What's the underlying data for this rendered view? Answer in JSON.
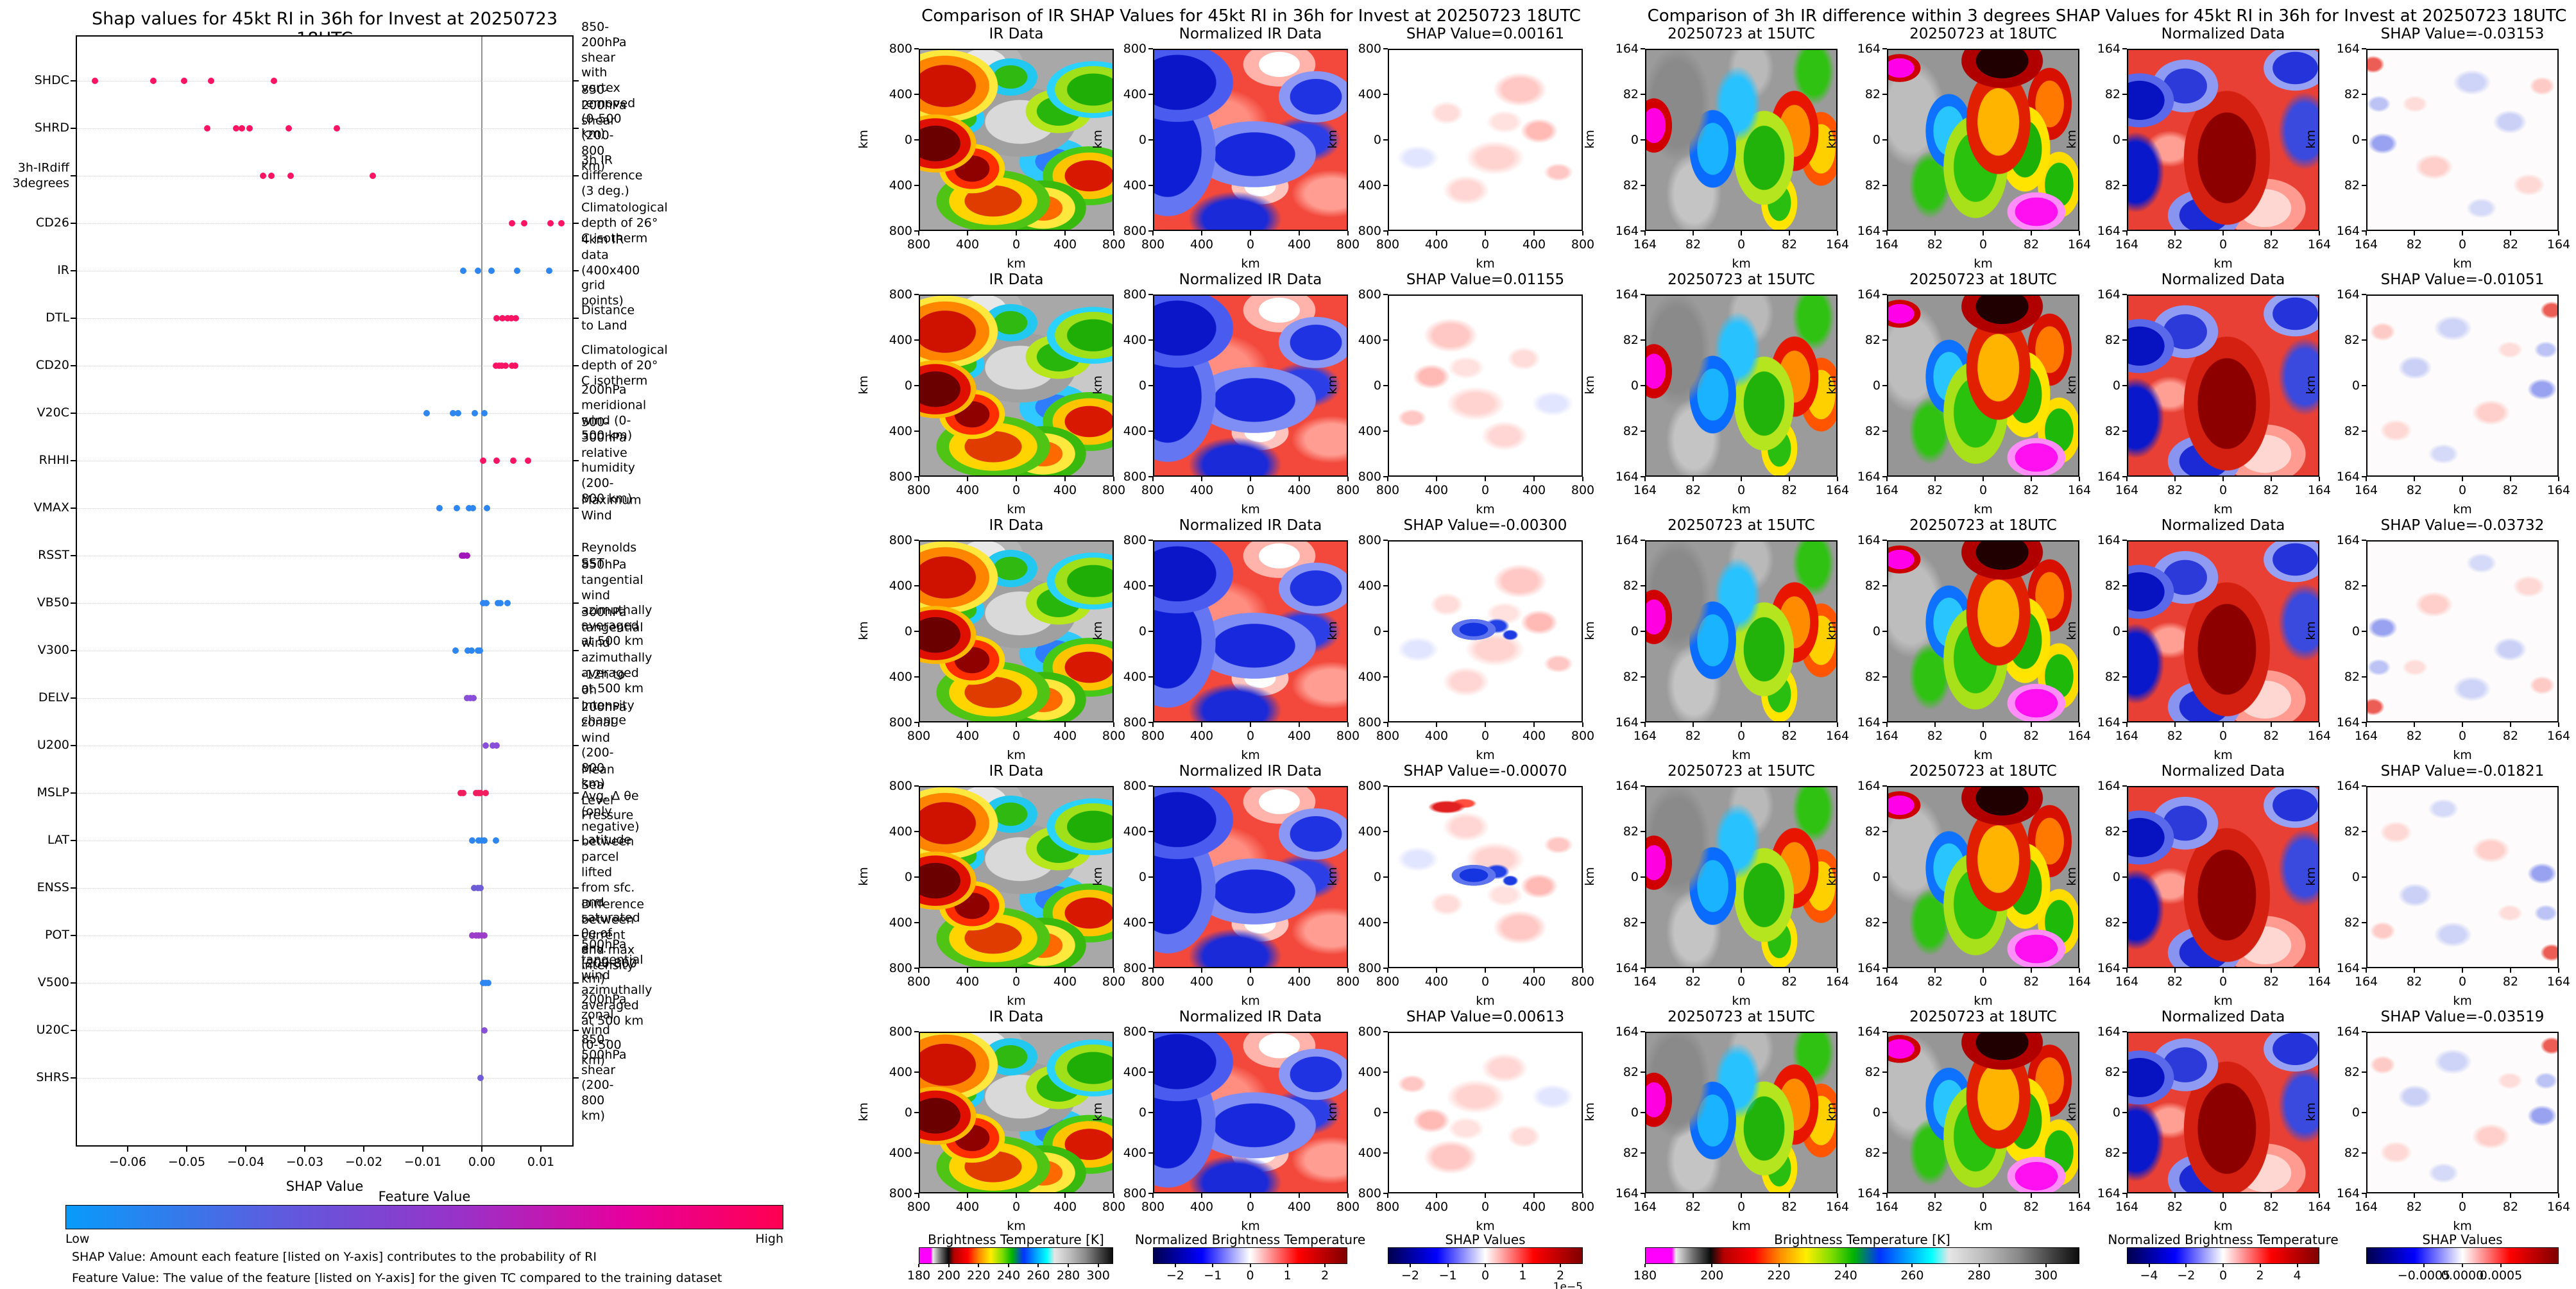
{
  "chart_data": [
    {
      "type": "scatter",
      "subtype": "shap-beeswarm",
      "title": "Shap values for 45kt RI in 36h for Invest at 20250723 18UTC",
      "xlabel": "SHAP Value",
      "xlim": [
        -0.069,
        0.0155
      ],
      "x_ticks": [
        -0.06,
        -0.05,
        -0.04,
        -0.03,
        -0.02,
        -0.01,
        0.0,
        0.01
      ],
      "x_tick_labels": [
        "−0.06",
        "−0.05",
        "−0.04",
        "−0.03",
        "−0.02",
        "−0.01",
        "0.00",
        "0.01"
      ],
      "grid": true,
      "colorbar": {
        "title": "Feature Value",
        "low_label": "Low",
        "high_label": "High",
        "low_color": "#089bfa",
        "high_color": "#ff0051"
      },
      "footnotes": [
        "SHAP Value: Amount each feature [listed on Y-axis] contributes to the probability of RI",
        "Feature Value: The value of the feature [listed on Y-axis] for the given TC compared to the training dataset"
      ],
      "features": [
        {
          "name": "SHDC",
          "description": "850-200hPa shear with\nvortex removed (0-500 km)",
          "dot_color": "#ff1464",
          "values": [
            -0.0655,
            -0.0557,
            -0.0504,
            -0.0459,
            -0.0352
          ]
        },
        {
          "name": "SHRD",
          "description": "850-200hPa shear (200-800 km)",
          "dot_color": "#ff1464",
          "values": [
            -0.0465,
            -0.0416,
            -0.0407,
            -0.0393,
            -0.0327,
            -0.0246
          ]
        },
        {
          "name": "3h-IRdiff\n3degrees",
          "description": "3h IR difference (3 deg.)",
          "dot_color": "#ff1464",
          "values": [
            -0.0371,
            -0.0357,
            -0.0324,
            -0.0185
          ]
        },
        {
          "name": "CD26",
          "description": "Climatological depth of 26° C isotherm",
          "dot_color": "#ff1464",
          "values": [
            0.0051,
            0.0072,
            0.0116,
            0.0135
          ]
        },
        {
          "name": "IR",
          "description": "4km IR data (400x400 grid points)",
          "dot_color": "#2e86f0",
          "values": [
            -0.0031,
            -0.0007,
            0.0016,
            0.006,
            0.0114
          ]
        },
        {
          "name": "DTL",
          "description": "Distance to Land",
          "dot_color": "#ff1464",
          "values": [
            0.0025,
            0.0035,
            0.0044,
            0.005,
            0.0058
          ]
        },
        {
          "name": "CD20",
          "description": "Climatological depth of 20° C isotherm",
          "dot_color": "#ff1464",
          "values": [
            0.0024,
            0.0029,
            0.0034,
            0.004,
            0.0051,
            0.0056
          ]
        },
        {
          "name": "V20C",
          "description": "200hPa meridional wind (0-500 km)",
          "dot_color": "#2e86f0",
          "values": [
            -0.0094,
            -0.0049,
            -0.004,
            -0.0012,
            0.0004
          ]
        },
        {
          "name": "RHHI",
          "description": "500-300hPa relative humidity (200-800 km)",
          "dot_color": "#ff1464",
          "values": [
            0.0002,
            0.0025,
            0.0053,
            0.0078
          ]
        },
        {
          "name": "VMAX",
          "description": "Maximum Wind",
          "dot_color": "#2e86f0",
          "values": [
            -0.0072,
            -0.0042,
            -0.0022,
            -0.0015,
            0.0009
          ]
        },
        {
          "name": "RSST",
          "description": "Reynolds SST",
          "dot_color": "#a016b8",
          "values": [
            -0.0034,
            -0.003,
            -0.0025
          ]
        },
        {
          "name": "VB50",
          "description": "850hPa tangential wind azimuthally\naveraged at 500 km",
          "dot_color": "#2e86f0",
          "values": [
            0.0002,
            0.0008,
            0.0027,
            0.0032,
            0.0043
          ]
        },
        {
          "name": "V300",
          "description": "300hPa tangential wind azimuthally\naveraged at 500 km",
          "dot_color": "#2e86f0",
          "values": [
            -0.0045,
            -0.0024,
            -0.0017,
            -0.0007,
            -0.0003
          ]
        },
        {
          "name": "DELV",
          "description": "-12h to 0h Intensity change",
          "dot_color": "#8a4fd8",
          "values": [
            -0.0025,
            -0.002,
            -0.0014
          ]
        },
        {
          "name": "U200",
          "description": "200hPa zonal wind (200-800 km)",
          "dot_color": "#8a4fd8",
          "values": [
            0.0007,
            0.0019,
            0.0025
          ]
        },
        {
          "name": "MSLP",
          "description": "Mean Sea Level Pressure",
          "dot_color": "#f01d5f",
          "values": [
            -0.0036,
            -0.0031,
            -0.001,
            -0.0005,
            -0.0002,
            0.0007
          ]
        },
        {
          "name": "LAT",
          "description": "Latitude",
          "dot_color": "#2e86f0",
          "values": [
            -0.0016,
            -0.0005,
            0.0,
            0.0004,
            0.0024
          ]
        },
        {
          "name": "ENSS",
          "description": "Avg. Δ θe (only negative) between parcel lifted\nfrom sfc. and saturated θe of env. (200-800 km)",
          "dot_color": "#6f5cd9",
          "values": [
            -0.0013,
            -0.0007,
            -0.0002
          ]
        },
        {
          "name": "POT",
          "description": "Difference between current and max intensity",
          "dot_color": "#9b3ec9",
          "values": [
            -0.0016,
            -0.001,
            -0.0005,
            0.0,
            0.0004
          ]
        },
        {
          "name": "V500",
          "description": "500hPa tangential wind azimuthally\naveraged at 500 km",
          "dot_color": "#2e86f0",
          "values": [
            0.0002,
            0.0006,
            0.0011
          ]
        },
        {
          "name": "U20C",
          "description": "200hPa zonal wind (0-500 km)",
          "dot_color": "#8a4fd8",
          "values": [
            0.0004
          ]
        },
        {
          "name": "SHRS",
          "description": "850-500hPa shear (200-800 km)",
          "dot_color": "#6f5cd9",
          "values": [
            -0.0002
          ]
        }
      ]
    },
    {
      "type": "heatmap",
      "subtype": "ir-shap-grid",
      "title": "Comparison of IR SHAP Values for 45kt RI in 36h for Invest at 20250723 18UTC",
      "col_titles": [
        "IR Data",
        "Normalized IR Data"
      ],
      "rows": [
        {
          "shap_title": "SHAP Value=0.00161",
          "shap_value": 0.00161
        },
        {
          "shap_title": "SHAP Value=0.01155",
          "shap_value": 0.01155
        },
        {
          "shap_title": "SHAP Value=-0.00300",
          "shap_value": -0.003
        },
        {
          "shap_title": "SHAP Value=-0.00070",
          "shap_value": -0.0007
        },
        {
          "shap_title": "SHAP Value=0.00613",
          "shap_value": 0.00613
        }
      ],
      "axis_ticks": [
        "800",
        "400",
        "0",
        "400",
        "800"
      ],
      "axis_unit": "km",
      "colorbars": [
        {
          "title": "Brightness Temperature [K]",
          "ticks": [
            "180",
            "200",
            "220",
            "240",
            "260",
            "280",
            "300"
          ]
        },
        {
          "title": "Normalized Brightness Temperature [K]",
          "ticks": [
            "−2",
            "−1",
            "0",
            "1",
            "2"
          ]
        },
        {
          "title": "SHAP Values",
          "ticks": [
            "−2",
            "−1",
            "0",
            "1",
            "2"
          ],
          "scale_note": "1e−5"
        }
      ]
    },
    {
      "type": "heatmap",
      "subtype": "ir-diff-shap-grid",
      "title": "Comparison of 3h IR difference within 3 degrees SHAP Values for 45kt RI in 36h for Invest at 20250723 18UTC",
      "col_titles": [
        "20250723 at 15UTC",
        "20250723 at 18UTC",
        "Normalized Data"
      ],
      "rows": [
        {
          "shap_title": "SHAP Value=-0.03153",
          "shap_value": -0.03153
        },
        {
          "shap_title": "SHAP Value=-0.01051",
          "shap_value": -0.01051
        },
        {
          "shap_title": "SHAP Value=-0.03732",
          "shap_value": -0.03732
        },
        {
          "shap_title": "SHAP Value=-0.01821",
          "shap_value": -0.01821
        },
        {
          "shap_title": "SHAP Value=-0.03519",
          "shap_value": -0.03519
        }
      ],
      "axis_ticks": [
        "164",
        "82",
        "0",
        "82",
        "164"
      ],
      "axis_unit": "km",
      "colorbars": [
        {
          "title": "Brightness Temperature [K]",
          "ticks": [
            "180",
            "200",
            "220",
            "240",
            "260",
            "280",
            "300"
          ]
        },
        {
          "title": "Normalized Brightness Temperature [K]",
          "ticks": [
            "−4",
            "−2",
            "0",
            "2",
            "4"
          ]
        },
        {
          "title": "SHAP Values",
          "ticks": [
            "−0.0005",
            "0.0000",
            "0.0005"
          ]
        }
      ]
    }
  ]
}
